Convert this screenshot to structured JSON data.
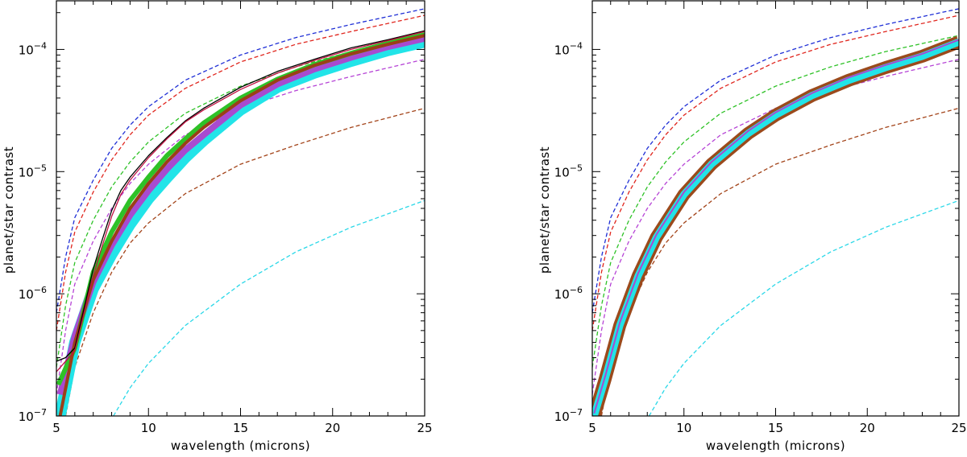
{
  "chart_data": [
    {
      "type": "line",
      "panel": "left",
      "xlabel": "wavelength (microns)",
      "ylabel": "planet/star contrast",
      "xlim": [
        5,
        25
      ],
      "ylim": [
        1e-07,
        0.00025
      ],
      "yscale": "log",
      "xticks": [
        5,
        10,
        15,
        20,
        25
      ],
      "xtick_labels": [
        "5",
        "10",
        "15",
        "20",
        "25"
      ],
      "yticks": [
        1e-07,
        1e-06,
        1e-05,
        0.0001
      ],
      "ytick_labels": [
        [
          "10",
          "−7"
        ],
        [
          "10",
          "−6"
        ],
        [
          "10",
          "−5"
        ],
        [
          "10",
          "−4"
        ]
      ],
      "series": [
        {
          "name": "blue-dashed",
          "color": "#1f2fd6",
          "style": "dashed",
          "width": 1.3,
          "x": [
            5,
            5.5,
            6,
            7,
            8,
            9,
            10,
            12,
            15,
            18,
            21,
            25
          ],
          "values": [
            7e-07,
            2e-06,
            4.2e-06,
            8.5e-06,
            1.55e-05,
            2.4e-05,
            3.4e-05,
            5.6e-05,
            9e-05,
            0.000125,
            0.00016,
            0.000215
          ]
        },
        {
          "name": "red-dashed",
          "color": "#e0261e",
          "style": "dashed",
          "width": 1.3,
          "x": [
            5,
            5.5,
            6,
            7,
            8,
            9,
            10,
            12,
            15,
            18,
            21,
            25
          ],
          "values": [
            5e-07,
            1.5e-06,
            3.2e-06,
            6.8e-06,
            1.25e-05,
            2e-05,
            2.9e-05,
            4.8e-05,
            7.9e-05,
            0.00011,
            0.00014,
            0.00019
          ]
        },
        {
          "name": "green-dashed",
          "color": "#2ec227",
          "style": "dashed",
          "width": 1.3,
          "x": [
            5,
            5.5,
            6,
            7,
            8,
            9,
            10,
            12,
            15,
            18,
            21,
            25
          ],
          "values": [
            2.5e-07,
            8e-07,
            1.8e-06,
            4e-06,
            7.5e-06,
            1.2e-05,
            1.75e-05,
            3e-05,
            5e-05,
            7.2e-05,
            9.6e-05,
            0.00013
          ]
        },
        {
          "name": "purple-dashed",
          "color": "#b644d6",
          "style": "dashed",
          "width": 1.3,
          "x": [
            5,
            5.5,
            6,
            7,
            8,
            9,
            10,
            12,
            15,
            18,
            21,
            25
          ],
          "values": [
            1.5e-07,
            5e-07,
            1.2e-06,
            2.7e-06,
            5e-06,
            8e-06,
            1.15e-05,
            2e-05,
            3.3e-05,
            4.6e-05,
            6e-05,
            8.3e-05
          ]
        },
        {
          "name": "brown-dashed",
          "color": "#a3441a",
          "style": "dashed",
          "width": 1.3,
          "x": [
            5.5,
            6,
            7,
            8,
            9,
            10,
            12,
            15,
            18,
            21,
            25
          ],
          "values": [
            1e-07,
            2.5e-07,
            7e-07,
            1.5e-06,
            2.6e-06,
            3.8e-06,
            6.6e-06,
            1.15e-05,
            1.65e-05,
            2.3e-05,
            3.3e-05
          ]
        },
        {
          "name": "cyan-dashed",
          "color": "#2ad8e8",
          "style": "dashed",
          "width": 1.3,
          "x": [
            8.1,
            9,
            10,
            12,
            15,
            18,
            21,
            25
          ],
          "values": [
            1e-07,
            1.7e-07,
            2.7e-07,
            5.5e-07,
            1.2e-06,
            2.2e-06,
            3.5e-06,
            5.8e-06
          ]
        },
        {
          "name": "cyan-band",
          "color": "#22e4e8",
          "style": "solid",
          "width": 14,
          "x": [
            5.2,
            6,
            7,
            8,
            9,
            10,
            11,
            12,
            13,
            15,
            17,
            19,
            21,
            23,
            25
          ],
          "values": [
            1e-07,
            4e-07,
            1.1e-06,
            2.1e-06,
            3.7e-06,
            6e-06,
            8.9e-06,
            1.3e-05,
            1.8e-05,
            3.2e-05,
            4.9e-05,
            6.4e-05,
            8e-05,
            9.8e-05,
            0.000115
          ]
        },
        {
          "name": "purple-band",
          "color": "#a84ad0",
          "style": "solid",
          "width": 8,
          "x": [
            5.2,
            6,
            7,
            8,
            9,
            10,
            11,
            12,
            13,
            15,
            17,
            19,
            21,
            23,
            25
          ],
          "values": [
            1.5e-07,
            4.5e-07,
            1.25e-06,
            2.5e-06,
            4.4e-06,
            7e-06,
            1.05e-05,
            1.5e-05,
            2e-05,
            3.5e-05,
            5.2e-05,
            6.9e-05,
            8.6e-05,
            0.000105,
            0.000123
          ]
        },
        {
          "name": "green-band",
          "color": "#2ec227",
          "style": "solid",
          "width": 6,
          "x": [
            5.1,
            6,
            7,
            8,
            9,
            10,
            11,
            12,
            13,
            15,
            17,
            19,
            21,
            23,
            25
          ],
          "values": [
            1.8e-07,
            3.6e-07,
            1.5e-06,
            3.2e-06,
            5.8e-06,
            9e-06,
            1.35e-05,
            1.85e-05,
            2.5e-05,
            4e-05,
            5.7e-05,
            7.5e-05,
            9.3e-05,
            0.000112,
            0.000132
          ]
        },
        {
          "name": "brown-solid",
          "color": "#9b3f17",
          "style": "solid",
          "width": 4,
          "x": [
            5.2,
            6,
            7,
            8,
            9,
            10,
            11,
            12,
            13,
            15,
            17,
            19,
            21,
            23,
            25
          ],
          "values": [
            1e-07,
            4e-07,
            1.3e-06,
            2.7e-06,
            5e-06,
            8e-06,
            1.2e-05,
            1.7e-05,
            2.3e-05,
            3.8e-05,
            5.6e-05,
            7.4e-05,
            9.2e-05,
            0.00011,
            0.00013
          ]
        },
        {
          "name": "black-solid",
          "color": "#000000",
          "style": "solid",
          "width": 1.3,
          "x": [
            5,
            5.5,
            6,
            7,
            7.5,
            8,
            8.5,
            9,
            10,
            11,
            12,
            13,
            15,
            17,
            19,
            21,
            23,
            25
          ],
          "values": [
            2.8e-07,
            3e-07,
            3.6e-07,
            1.6e-06,
            2.8e-06,
            4.8e-06,
            7e-06,
            9e-06,
            1.35e-05,
            1.9e-05,
            2.6e-05,
            3.3e-05,
            4.9e-05,
            6.6e-05,
            8.3e-05,
            0.000103,
            0.00012,
            0.000142
          ]
        },
        {
          "name": "crimson-solid",
          "color": "#c01040",
          "style": "solid",
          "width": 1.3,
          "x": [
            5,
            5.5,
            6,
            7,
            7.5,
            8,
            8.5,
            9,
            10,
            11,
            12,
            13,
            15,
            17,
            19,
            21,
            23,
            25
          ],
          "values": [
            2.3e-07,
            2.8e-07,
            3.4e-07,
            1.4e-06,
            2.5e-06,
            4.3e-06,
            6.5e-06,
            8.5e-06,
            1.3e-05,
            1.85e-05,
            2.55e-05,
            3.2e-05,
            4.7e-05,
            6.4e-05,
            8.1e-05,
            0.0001,
            0.000118,
            0.00014
          ]
        }
      ]
    },
    {
      "type": "line",
      "panel": "right",
      "xlabel": "wavelength (microns)",
      "ylabel": "planet/star contrast",
      "xlim": [
        5,
        25
      ],
      "ylim": [
        1e-07,
        0.00025
      ],
      "yscale": "log",
      "xticks": [
        5,
        10,
        15,
        20,
        25
      ],
      "xtick_labels": [
        "5",
        "10",
        "15",
        "20",
        "25"
      ],
      "yticks": [
        1e-07,
        1e-06,
        1e-05,
        0.0001
      ],
      "ytick_labels": [
        [
          "10",
          "−7"
        ],
        [
          "10",
          "−6"
        ],
        [
          "10",
          "−5"
        ],
        [
          "10",
          "−4"
        ]
      ],
      "series": [
        {
          "name": "blue-dashed",
          "color": "#1f2fd6",
          "style": "dashed",
          "width": 1.3,
          "x": [
            5,
            5.5,
            6,
            7,
            8,
            9,
            10,
            12,
            15,
            18,
            21,
            25
          ],
          "values": [
            7e-07,
            2e-06,
            4.2e-06,
            8.5e-06,
            1.55e-05,
            2.4e-05,
            3.4e-05,
            5.6e-05,
            9e-05,
            0.000125,
            0.00016,
            0.000215
          ]
        },
        {
          "name": "red-dashed",
          "color": "#e0261e",
          "style": "dashed",
          "width": 1.3,
          "x": [
            5,
            5.5,
            6,
            7,
            8,
            9,
            10,
            12,
            15,
            18,
            21,
            25
          ],
          "values": [
            5e-07,
            1.5e-06,
            3.2e-06,
            6.8e-06,
            1.25e-05,
            2e-05,
            2.9e-05,
            4.8e-05,
            7.9e-05,
            0.00011,
            0.00014,
            0.00019
          ]
        },
        {
          "name": "green-dashed",
          "color": "#2ec227",
          "style": "dashed",
          "width": 1.3,
          "x": [
            5,
            5.5,
            6,
            7,
            8,
            9,
            10,
            12,
            15,
            18,
            21,
            25
          ],
          "values": [
            2.5e-07,
            8e-07,
            1.8e-06,
            4e-06,
            7.5e-06,
            1.2e-05,
            1.75e-05,
            3e-05,
            5e-05,
            7.2e-05,
            9.6e-05,
            0.00013
          ]
        },
        {
          "name": "purple-dashed",
          "color": "#b644d6",
          "style": "dashed",
          "width": 1.3,
          "x": [
            5,
            5.5,
            6,
            7,
            8,
            9,
            10,
            12,
            15,
            18,
            21,
            25
          ],
          "values": [
            1.5e-07,
            5e-07,
            1.2e-06,
            2.7e-06,
            5e-06,
            8e-06,
            1.15e-05,
            2e-05,
            3.3e-05,
            4.6e-05,
            6e-05,
            8.3e-05
          ]
        },
        {
          "name": "brown-dashed",
          "color": "#a3441a",
          "style": "dashed",
          "width": 1.3,
          "x": [
            5.5,
            6,
            7,
            8,
            9,
            10,
            12,
            15,
            18,
            21,
            25
          ],
          "values": [
            1e-07,
            2.5e-07,
            7e-07,
            1.5e-06,
            2.6e-06,
            3.8e-06,
            6.6e-06,
            1.15e-05,
            1.65e-05,
            2.3e-05,
            3.3e-05
          ]
        },
        {
          "name": "cyan-dashed",
          "color": "#2ad8e8",
          "style": "dashed",
          "width": 1.3,
          "x": [
            8.1,
            9,
            10,
            12,
            15,
            18,
            21,
            25
          ],
          "values": [
            1e-07,
            1.7e-07,
            2.7e-07,
            5.5e-07,
            1.2e-06,
            2.2e-06,
            3.5e-06,
            5.8e-06
          ]
        },
        {
          "name": "brown-band",
          "color": "#9b4a1c",
          "style": "solid",
          "width": 16,
          "x": [
            5.1,
            5.7,
            6.5,
            7.5,
            8.5,
            10,
            11.5,
            13.5,
            15,
            17,
            19,
            21,
            23,
            25
          ],
          "values": [
            1e-07,
            2e-07,
            5.5e-07,
            1.4e-06,
            2.9e-06,
            6.5e-06,
            1.15e-05,
            2.05e-05,
            2.9e-05,
            4.2e-05,
            5.6e-05,
            7.1e-05,
            8.8e-05,
            0.000115
          ]
        },
        {
          "name": "cyan-band",
          "color": "#22e4e8",
          "style": "solid",
          "width": 9,
          "x": [
            5.1,
            5.7,
            6.5,
            7.5,
            8.5,
            10,
            11.5,
            13.5,
            15,
            17,
            19,
            21,
            23,
            25
          ],
          "values": [
            1e-07,
            2e-07,
            5.5e-07,
            1.4e-06,
            2.9e-06,
            6.5e-06,
            1.15e-05,
            2.05e-05,
            2.9e-05,
            4.2e-05,
            5.6e-05,
            7.1e-05,
            8.8e-05,
            0.000115
          ]
        },
        {
          "name": "purple-line",
          "color": "#a84ad0",
          "style": "solid",
          "width": 2,
          "x": [
            5.1,
            5.7,
            6.5,
            7.5,
            8.5,
            10,
            11.5,
            13.5,
            15,
            17,
            19,
            21,
            23,
            25
          ],
          "values": [
            1.05e-07,
            2.1e-07,
            5.8e-07,
            1.47e-06,
            3.05e-06,
            6.8e-06,
            1.2e-05,
            2.15e-05,
            3.05e-05,
            4.4e-05,
            5.9e-05,
            7.45e-05,
            9.2e-05,
            0.00012
          ]
        }
      ]
    }
  ]
}
